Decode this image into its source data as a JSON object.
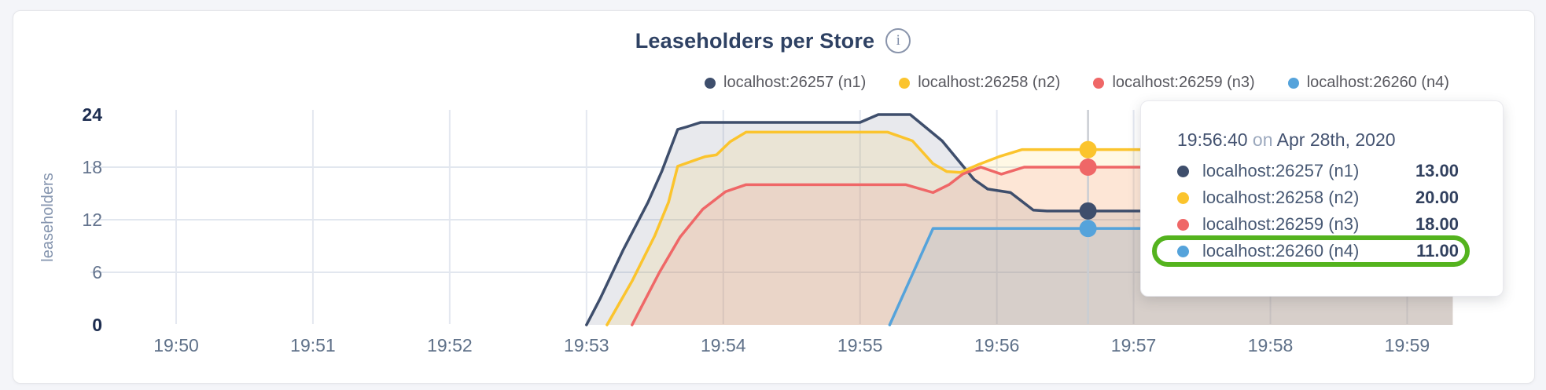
{
  "header": {
    "title": "Leaseholders per Store",
    "info_icon_glyph": "i"
  },
  "chart_data": {
    "type": "area",
    "title": "Leaseholders per Store",
    "ylabel": "leaseholders",
    "ylim": [
      0,
      24
    ],
    "grid": "on",
    "legend_position": "top-right",
    "x_unit": "time HH:MM, seconds offset from 19:50:00",
    "x_ticks": [
      {
        "t": 0,
        "label": "19:50"
      },
      {
        "t": 60,
        "label": "19:51"
      },
      {
        "t": 120,
        "label": "19:52"
      },
      {
        "t": 180,
        "label": "19:53"
      },
      {
        "t": 240,
        "label": "19:54"
      },
      {
        "t": 300,
        "label": "19:55"
      },
      {
        "t": 360,
        "label": "19:56"
      },
      {
        "t": 420,
        "label": "19:57"
      },
      {
        "t": 480,
        "label": "19:58"
      },
      {
        "t": 540,
        "label": "19:59"
      }
    ],
    "y_ticks": [
      {
        "v": 0,
        "label": "0",
        "emph": true
      },
      {
        "v": 6,
        "label": "6"
      },
      {
        "v": 12,
        "label": "12"
      },
      {
        "v": 18,
        "label": "18"
      },
      {
        "v": 24,
        "label": "24",
        "emph": true
      }
    ],
    "fill_opacity": 0.12,
    "series": [
      {
        "name": "localhost:26257 (n1)",
        "color": "#3E4E6C",
        "points": [
          [
            180,
            0
          ],
          [
            186,
            3
          ],
          [
            196,
            8.5
          ],
          [
            207,
            14
          ],
          [
            213,
            17.5
          ],
          [
            220,
            22.3
          ],
          [
            224,
            22.6
          ],
          [
            230,
            23.1
          ],
          [
            300,
            23.1
          ],
          [
            308,
            24
          ],
          [
            322,
            24
          ],
          [
            336,
            21
          ],
          [
            350,
            16.6
          ],
          [
            356,
            15.5
          ],
          [
            366,
            15.1
          ],
          [
            376,
            13.1
          ],
          [
            382,
            13
          ],
          [
            560,
            13
          ]
        ]
      },
      {
        "name": "localhost:26258 (n2)",
        "color": "#FBC42D",
        "points": [
          [
            189,
            0
          ],
          [
            200,
            5
          ],
          [
            210,
            10.2
          ],
          [
            216,
            14
          ],
          [
            220,
            18.1
          ],
          [
            232,
            19.2
          ],
          [
            237,
            19.4
          ],
          [
            243,
            20.9
          ],
          [
            250,
            22
          ],
          [
            312,
            22
          ],
          [
            323,
            21
          ],
          [
            332,
            18.4
          ],
          [
            338,
            17.5
          ],
          [
            344,
            17.4
          ],
          [
            352,
            18.3
          ],
          [
            361,
            19.2
          ],
          [
            371,
            20
          ],
          [
            560,
            20
          ]
        ]
      },
      {
        "name": "localhost:26259 (n3)",
        "color": "#EF6767",
        "points": [
          [
            200,
            0
          ],
          [
            212,
            6
          ],
          [
            221,
            10
          ],
          [
            231,
            13.2
          ],
          [
            241,
            15.2
          ],
          [
            250,
            16
          ],
          [
            320,
            16
          ],
          [
            332,
            15.1
          ],
          [
            339,
            16
          ],
          [
            345,
            17.2
          ],
          [
            353,
            18
          ],
          [
            362,
            17.2
          ],
          [
            372,
            18
          ],
          [
            560,
            18
          ]
        ]
      },
      {
        "name": "localhost:26260 (n4)",
        "color": "#55A3DB",
        "points": [
          [
            313,
            0
          ],
          [
            332,
            11
          ],
          [
            560,
            11
          ]
        ]
      }
    ],
    "hover": {
      "t": 400,
      "time": "19:56:40",
      "values": [
        13,
        20,
        18,
        11
      ]
    }
  },
  "tooltip": {
    "time": "19:56:40",
    "conj": "on",
    "date": "Apr 28th, 2020",
    "rows": [
      {
        "label": "localhost:26257 (n1)",
        "value": "13.00"
      },
      {
        "label": "localhost:26258 (n2)",
        "value": "20.00"
      },
      {
        "label": "localhost:26259 (n3)",
        "value": "18.00"
      },
      {
        "label": "localhost:26260 (n4)",
        "value": "11.00"
      }
    ],
    "highlighted_row": 3,
    "ring_color": "#54B31E"
  }
}
